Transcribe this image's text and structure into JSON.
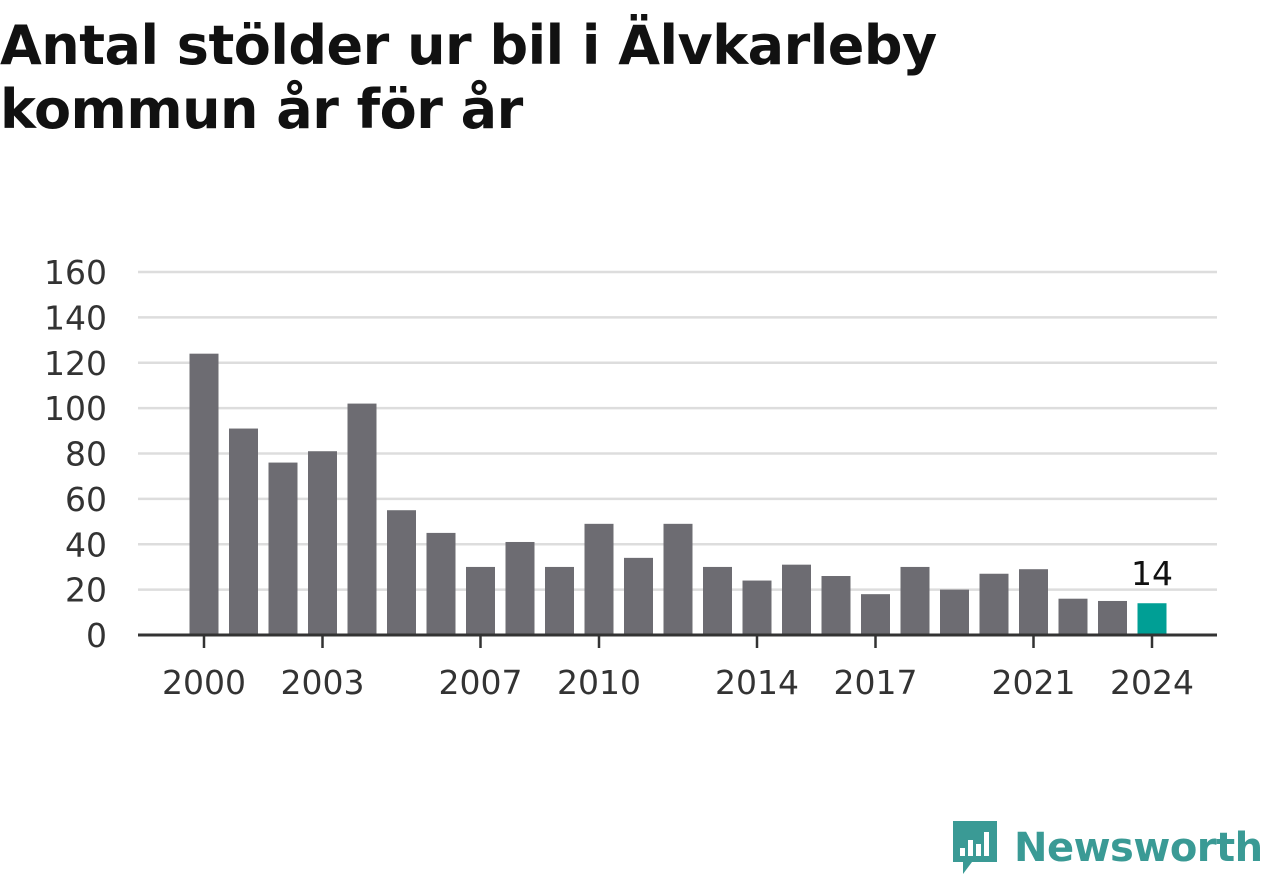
{
  "title": "Antal stölder ur bil i Älvkarleby kommun år för år",
  "brand": {
    "name": "Newsworthy",
    "color": "#3a9a95",
    "icon": "newsworthy-logo-icon"
  },
  "colors": {
    "bar": "#6d6c72",
    "highlight": "#009f95",
    "grid": "#dddddd",
    "axis": "#333333"
  },
  "chart_data": {
    "type": "bar",
    "title": "Antal stölder ur bil i Älvkarleby kommun år för år",
    "xlabel": "",
    "ylabel": "",
    "ylim": [
      0,
      160
    ],
    "yticks": [
      0,
      20,
      40,
      60,
      80,
      100,
      120,
      140,
      160
    ],
    "grid": true,
    "categories": [
      "2000",
      "2001",
      "2002",
      "2003",
      "2004",
      "2005",
      "2006",
      "2007",
      "2008",
      "2009",
      "2010",
      "2011",
      "2012",
      "2013",
      "2014",
      "2015",
      "2016",
      "2017",
      "2018",
      "2019",
      "2020",
      "2021",
      "2022",
      "2023",
      "2024"
    ],
    "values": [
      124,
      91,
      76,
      81,
      102,
      55,
      45,
      30,
      41,
      30,
      49,
      34,
      49,
      30,
      24,
      31,
      26,
      18,
      30,
      20,
      27,
      29,
      16,
      15,
      14
    ],
    "xtick_labels": [
      "2000",
      "2003",
      "2007",
      "2010",
      "2014",
      "2017",
      "2021",
      "2024"
    ],
    "highlight": {
      "category": "2024",
      "label": "14"
    }
  }
}
